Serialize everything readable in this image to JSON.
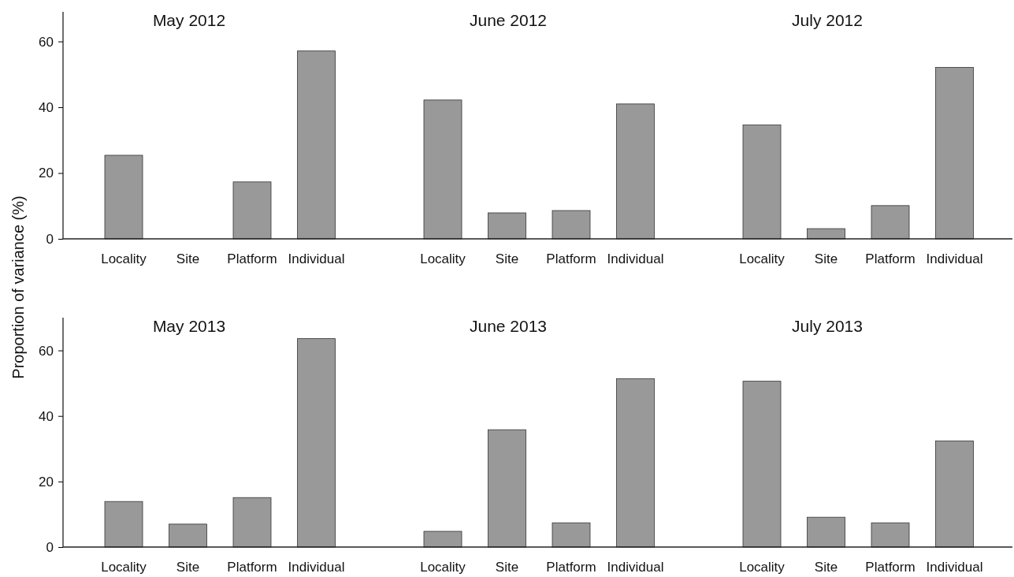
{
  "chart_data": [
    {
      "type": "bar",
      "ylabel": "Proportion of variance (%)",
      "categories": [
        "Locality",
        "Site",
        "Platform",
        "Individual",
        "Locality",
        "Site",
        "Platform",
        "Individual",
        "Locality",
        "Site",
        "Platform",
        "Individual"
      ],
      "values": [
        25.4,
        0,
        17.3,
        57.1,
        42.2,
        7.9,
        8.6,
        41.0,
        34.6,
        3.1,
        10.1,
        52.1
      ],
      "color": "#999999",
      "ylim": [
        0,
        69
      ],
      "yticks": [
        0,
        20,
        40,
        60
      ],
      "annotations": [
        "May 2012",
        "June 2012",
        "July 2012"
      ]
    },
    {
      "type": "bar",
      "categories": [
        "Locality",
        "Site",
        "Platform",
        "Individual",
        "Locality",
        "Site",
        "Platform",
        "Individual",
        "Locality",
        "Site",
        "Platform",
        "Individual"
      ],
      "values": [
        13.9,
        7.0,
        15.1,
        63.6,
        4.8,
        35.8,
        7.4,
        51.4,
        50.6,
        9.1,
        7.4,
        32.4
      ],
      "color": "#999999",
      "ylim": [
        0,
        70
      ],
      "yticks": [
        0,
        20,
        40,
        60
      ],
      "annotations": [
        "May 2013",
        "June 2013",
        "July 2013"
      ]
    }
  ]
}
